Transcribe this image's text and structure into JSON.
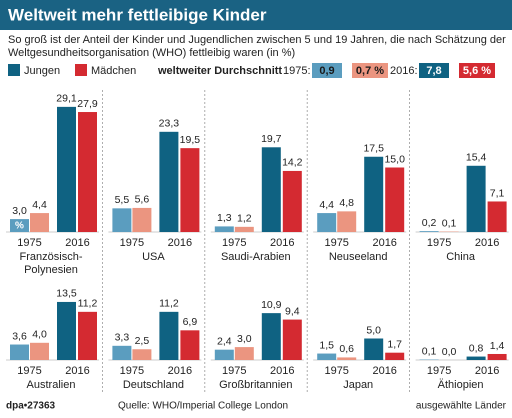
{
  "chart_data": {
    "type": "bar",
    "title": "Weltweit mehr fettleibige Kinder",
    "subtitle": [
      "So groß ist der Anteil der Kinder und Jugendlichen zwischen 5 und 19 Jahren, die nach Schätzung der",
      "Weltgesundheitsorganisation (WHO) fettleibig waren (in %)"
    ],
    "series": [
      {
        "name": "Jungen",
        "colors": [
          "#5b9dbf",
          "#0f6282"
        ]
      },
      {
        "name": "Mädchen",
        "colors": [
          "#eb9580",
          "#d42a31"
        ]
      }
    ],
    "periods": [
      "1975",
      "2016"
    ],
    "unit_in_bar": "%",
    "average": {
      "label": "weltweiter Durchschnitt",
      "periods": [
        "1975:",
        "2016:"
      ],
      "values": [
        [
          0.9,
          0.7
        ],
        [
          7.8,
          5.6
        ]
      ],
      "value_labels": [
        [
          "0,9",
          "0,7 %"
        ],
        [
          "7,8",
          "5,6 %"
        ]
      ]
    },
    "panels": [
      {
        "country": [
          "Französisch-",
          "Polynesien"
        ],
        "values": [
          3.0,
          4.4,
          29.1,
          27.9
        ],
        "value_labels": [
          "3,0",
          "4,4",
          "29,1",
          "27,9"
        ]
      },
      {
        "country": [
          "USA"
        ],
        "values": [
          5.5,
          5.6,
          23.3,
          19.5
        ],
        "value_labels": [
          "5,5",
          "5,6",
          "23,3",
          "19,5"
        ]
      },
      {
        "country": [
          "Saudi-Arabien"
        ],
        "values": [
          1.3,
          1.2,
          19.7,
          14.2
        ],
        "value_labels": [
          "1,3",
          "1,2",
          "19,7",
          "14,2"
        ]
      },
      {
        "country": [
          "Neuseeland"
        ],
        "values": [
          4.4,
          4.8,
          17.5,
          15.0
        ],
        "value_labels": [
          "4,4",
          "4,8",
          "17,5",
          "15,0"
        ]
      },
      {
        "country": [
          "China"
        ],
        "values": [
          0.2,
          0.1,
          15.4,
          7.1
        ],
        "value_labels": [
          "0,2",
          "0,1",
          "15,4",
          "7,1"
        ]
      },
      {
        "country": [
          "Australien"
        ],
        "values": [
          3.6,
          4.0,
          13.5,
          11.2
        ],
        "value_labels": [
          "3,6",
          "4,0",
          "13,5",
          "11,2"
        ]
      },
      {
        "country": [
          "Deutschland"
        ],
        "values": [
          3.3,
          2.5,
          11.2,
          6.9
        ],
        "value_labels": [
          "3,3",
          "2,5",
          "11,2",
          "6,9"
        ]
      },
      {
        "country": [
          "Großbritannien"
        ],
        "values": [
          2.4,
          3.0,
          10.9,
          9.4
        ],
        "value_labels": [
          "2,4",
          "3,0",
          "10,9",
          "9,4"
        ]
      },
      {
        "country": [
          "Japan"
        ],
        "values": [
          1.5,
          0.6,
          5.0,
          1.7
        ],
        "value_labels": [
          "1,5",
          "0,6",
          "5,0",
          "1,7"
        ]
      },
      {
        "country": [
          "Äthiopien"
        ],
        "values": [
          0.1,
          0.0,
          0.8,
          1.4
        ],
        "value_labels": [
          "0,1",
          "0,0",
          "0,8",
          "1,4"
        ]
      }
    ],
    "footer": {
      "id": "dpa•27363",
      "source": "Quelle: WHO/Imperial College London",
      "note": "ausgewählte Länder"
    }
  }
}
